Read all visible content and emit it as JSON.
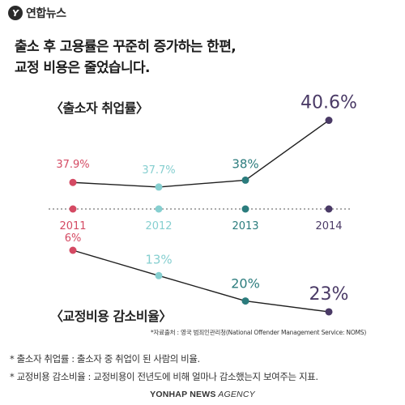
{
  "brand": {
    "logo_mark": "Y",
    "logo_text": "연합뉴스"
  },
  "headline": {
    "line1": "출소 후 고용률은 꾸준히 증가하는 한편,",
    "line2": "교정 비용은 줄었습니다."
  },
  "chart_data": {
    "type": "line",
    "x": [
      "2011",
      "2012",
      "2013",
      "2014"
    ],
    "series": [
      {
        "name": "〈출소자 취업률〉",
        "values": [
          37.9,
          37.7,
          38,
          40.6
        ],
        "labels": [
          "37.9%",
          "37.7%",
          "38%",
          "40.6%"
        ],
        "colors": [
          "#d44a63",
          "#86cfd0",
          "#2b7c7d",
          "#4a3a66"
        ]
      },
      {
        "name": "〈교정비용 감소비율〉",
        "values": [
          6,
          13,
          20,
          23
        ],
        "labels": [
          "6%",
          "13%",
          "20%",
          "23%"
        ],
        "colors": [
          "#d44a63",
          "#86cfd0",
          "#2b7c7d",
          "#4a3a66"
        ]
      }
    ],
    "line_color": "#1f1f1f",
    "axis_color": "#555555",
    "grid": false
  },
  "source_text": "*자료출처 : 영국 범죄인관리청(National Offender Management Service: NOMS)",
  "notes": [
    "* 출소자 취업률 : 출소자 중 취업이 된 사람의 비율.",
    "* 교정비용 감소비율 : 교정비용이 전년도에 비해 얼마나 감소했는지 보여주는 지표."
  ],
  "agency": {
    "bold": "YONHAP NEWS",
    "italic": " AGENCY"
  }
}
